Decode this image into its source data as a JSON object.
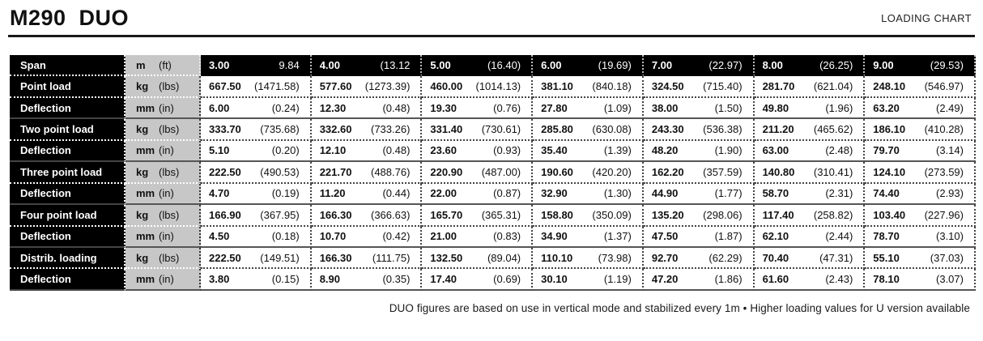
{
  "header": {
    "title": "M290  DUO",
    "subtitle": "LOADING CHART"
  },
  "footer": {
    "note": "DUO figures are based on use in vertical mode and stabilized every 1m • Higher loading values for U version available"
  },
  "colors": {
    "row_label_bg": "#000000",
    "unit_col_bg": "#c7c7c7",
    "header_row_bg": "#000000",
    "text": "#111111"
  },
  "table": {
    "rows": [
      {
        "label": "Span",
        "unit_metric": "m",
        "unit_imperial": "(ft)",
        "group_end": false,
        "values": [
          [
            "3.00",
            "9.84"
          ],
          [
            "4.00",
            "(13.12"
          ],
          [
            "5.00",
            "(16.40)"
          ],
          [
            "6.00",
            "(19.69)"
          ],
          [
            "7.00",
            "(22.97)"
          ],
          [
            "8.00",
            "(26.25)"
          ],
          [
            "9.00",
            "(29.53)"
          ]
        ]
      },
      {
        "label": "Point load",
        "unit_metric": "kg",
        "unit_imperial": "(lbs)",
        "group_end": false,
        "values": [
          [
            "667.50",
            "(1471.58)"
          ],
          [
            "577.60",
            "(1273.39)"
          ],
          [
            "460.00",
            "(1014.13)"
          ],
          [
            "381.10",
            "(840.18)"
          ],
          [
            "324.50",
            "(715.40)"
          ],
          [
            "281.70",
            "(621.04)"
          ],
          [
            "248.10",
            "(546.97)"
          ]
        ]
      },
      {
        "label": "Deflection",
        "unit_metric": "mm",
        "unit_imperial": "(in)",
        "group_end": true,
        "values": [
          [
            "6.00",
            "(0.24)"
          ],
          [
            "12.30",
            "(0.48)"
          ],
          [
            "19.30",
            "(0.76)"
          ],
          [
            "27.80",
            "(1.09)"
          ],
          [
            "38.00",
            "(1.50)"
          ],
          [
            "49.80",
            "(1.96)"
          ],
          [
            "63.20",
            "(2.49)"
          ]
        ]
      },
      {
        "label": "Two point load",
        "unit_metric": "kg",
        "unit_imperial": "(lbs)",
        "group_end": false,
        "values": [
          [
            "333.70",
            "(735.68)"
          ],
          [
            "332.60",
            "(733.26)"
          ],
          [
            "331.40",
            "(730.61)"
          ],
          [
            "285.80",
            "(630.08)"
          ],
          [
            "243.30",
            "(536.38)"
          ],
          [
            "211.20",
            "(465.62)"
          ],
          [
            "186.10",
            "(410.28)"
          ]
        ]
      },
      {
        "label": "Deflection",
        "unit_metric": "mm",
        "unit_imperial": "(in)",
        "group_end": true,
        "values": [
          [
            "5.10",
            "(0.20)"
          ],
          [
            "12.10",
            "(0.48)"
          ],
          [
            "23.60",
            "(0.93)"
          ],
          [
            "35.40",
            "(1.39)"
          ],
          [
            "48.20",
            "(1.90)"
          ],
          [
            "63.00",
            "(2.48)"
          ],
          [
            "79.70",
            "(3.14)"
          ]
        ]
      },
      {
        "label": "Three point load",
        "unit_metric": "kg",
        "unit_imperial": "(lbs)",
        "group_end": false,
        "values": [
          [
            "222.50",
            "(490.53)"
          ],
          [
            "221.70",
            "(488.76)"
          ],
          [
            "220.90",
            "(487.00)"
          ],
          [
            "190.60",
            "(420.20)"
          ],
          [
            "162.20",
            "(357.59)"
          ],
          [
            "140.80",
            "(310.41)"
          ],
          [
            "124.10",
            "(273.59)"
          ]
        ]
      },
      {
        "label": "Deflection",
        "unit_metric": "mm",
        "unit_imperial": "(in)",
        "group_end": true,
        "values": [
          [
            "4.70",
            "(0.19)"
          ],
          [
            "11.20",
            "(0.44)"
          ],
          [
            "22.00",
            "(0.87)"
          ],
          [
            "32.90",
            "(1.30)"
          ],
          [
            "44.90",
            "(1.77)"
          ],
          [
            "58.70",
            "(2.31)"
          ],
          [
            "74.40",
            "(2.93)"
          ]
        ]
      },
      {
        "label": "Four point load",
        "unit_metric": "kg",
        "unit_imperial": "(lbs)",
        "group_end": false,
        "values": [
          [
            "166.90",
            "(367.95)"
          ],
          [
            "166.30",
            "(366.63)"
          ],
          [
            "165.70",
            "(365.31)"
          ],
          [
            "158.80",
            "(350.09)"
          ],
          [
            "135.20",
            "(298.06)"
          ],
          [
            "117.40",
            "(258.82)"
          ],
          [
            "103.40",
            "(227.96)"
          ]
        ]
      },
      {
        "label": "Deflection",
        "unit_metric": "mm",
        "unit_imperial": "(in)",
        "group_end": true,
        "values": [
          [
            "4.50",
            "(0.18)"
          ],
          [
            "10.70",
            "(0.42)"
          ],
          [
            "21.00",
            "(0.83)"
          ],
          [
            "34.90",
            "(1.37)"
          ],
          [
            "47.50",
            "(1.87)"
          ],
          [
            "62.10",
            "(2.44)"
          ],
          [
            "78.70",
            "(3.10)"
          ]
        ]
      },
      {
        "label": "Distrib. loading",
        "unit_metric": "kg",
        "unit_imperial": "(lbs)",
        "group_end": false,
        "values": [
          [
            "222.50",
            "(149.51)"
          ],
          [
            "166.30",
            "(111.75)"
          ],
          [
            "132.50",
            "(89.04)"
          ],
          [
            "110.10",
            "(73.98)"
          ],
          [
            "92.70",
            "(62.29)"
          ],
          [
            "70.40",
            "(47.31)"
          ],
          [
            "55.10",
            "(37.03)"
          ]
        ]
      },
      {
        "label": "Deflection",
        "unit_metric": "mm",
        "unit_imperial": "(in)",
        "group_end": true,
        "values": [
          [
            "3.80",
            "(0.15)"
          ],
          [
            "8.90",
            "(0.35)"
          ],
          [
            "17.40",
            "(0.69)"
          ],
          [
            "30.10",
            "(1.19)"
          ],
          [
            "47.20",
            "(1.86)"
          ],
          [
            "61.60",
            "(2.43)"
          ],
          [
            "78.10",
            "(3.07)"
          ]
        ]
      }
    ]
  }
}
